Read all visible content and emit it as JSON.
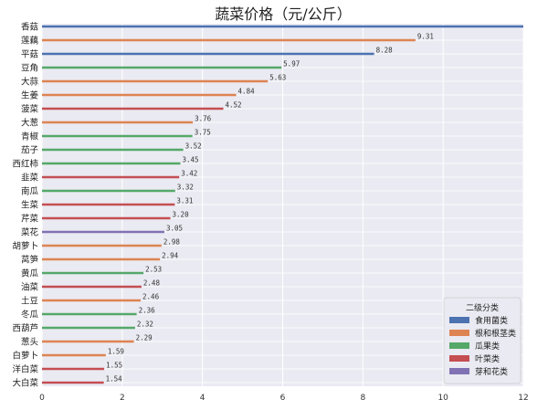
{
  "chart_data": {
    "type": "bar",
    "orientation": "horizontal",
    "title": "蔬菜价格（元/公斤）",
    "xlabel": "",
    "ylabel": "",
    "xlim": [
      0,
      12
    ],
    "xticks": [
      0,
      2,
      4,
      6,
      8,
      10,
      12
    ],
    "grid": true,
    "legend_placement": "bottom-right",
    "legend_title": "二级分类",
    "legend": [
      {
        "name": "食用菌类",
        "color": "#4C72B0"
      },
      {
        "name": "根和根茎类",
        "color": "#DD8452"
      },
      {
        "name": "瓜果类",
        "color": "#55A868"
      },
      {
        "name": "叶菜类",
        "color": "#C44E52"
      },
      {
        "name": "芽和花类",
        "color": "#8172B3"
      }
    ],
    "bars": [
      {
        "category": "香菇",
        "value": 12.0,
        "group": "食用菌类",
        "label": ""
      },
      {
        "category": "莲藕",
        "value": 9.31,
        "group": "根和根茎类",
        "label": "9.31"
      },
      {
        "category": "平菇",
        "value": 8.28,
        "group": "食用菌类",
        "label": "8.28"
      },
      {
        "category": "豆角",
        "value": 5.97,
        "group": "瓜果类",
        "label": "5.97"
      },
      {
        "category": "大蒜",
        "value": 5.63,
        "group": "根和根茎类",
        "label": "5.63"
      },
      {
        "category": "生姜",
        "value": 4.84,
        "group": "根和根茎类",
        "label": "4.84"
      },
      {
        "category": "菠菜",
        "value": 4.52,
        "group": "叶菜类",
        "label": "4.52"
      },
      {
        "category": "大葱",
        "value": 3.76,
        "group": "根和根茎类",
        "label": "3.76"
      },
      {
        "category": "青椒",
        "value": 3.75,
        "group": "瓜果类",
        "label": "3.75"
      },
      {
        "category": "茄子",
        "value": 3.52,
        "group": "瓜果类",
        "label": "3.52"
      },
      {
        "category": "西红柿",
        "value": 3.45,
        "group": "瓜果类",
        "label": "3.45"
      },
      {
        "category": "韭菜",
        "value": 3.42,
        "group": "叶菜类",
        "label": "3.42"
      },
      {
        "category": "南瓜",
        "value": 3.32,
        "group": "瓜果类",
        "label": "3.32"
      },
      {
        "category": "生菜",
        "value": 3.31,
        "group": "叶菜类",
        "label": "3.31"
      },
      {
        "category": "芹菜",
        "value": 3.2,
        "group": "叶菜类",
        "label": "3.20"
      },
      {
        "category": "菜花",
        "value": 3.05,
        "group": "芽和花类",
        "label": "3.05"
      },
      {
        "category": "胡萝卜",
        "value": 2.98,
        "group": "根和根茎类",
        "label": "2.98"
      },
      {
        "category": "莴笋",
        "value": 2.94,
        "group": "根和根茎类",
        "label": "2.94"
      },
      {
        "category": "黄瓜",
        "value": 2.53,
        "group": "瓜果类",
        "label": "2.53"
      },
      {
        "category": "油菜",
        "value": 2.48,
        "group": "叶菜类",
        "label": "2.48"
      },
      {
        "category": "土豆",
        "value": 2.46,
        "group": "根和根茎类",
        "label": "2.46"
      },
      {
        "category": "冬瓜",
        "value": 2.36,
        "group": "瓜果类",
        "label": "2.36"
      },
      {
        "category": "西葫芦",
        "value": 2.32,
        "group": "瓜果类",
        "label": "2.32"
      },
      {
        "category": "葱头",
        "value": 2.29,
        "group": "根和根茎类",
        "label": "2.29"
      },
      {
        "category": "白萝卜",
        "value": 1.59,
        "group": "根和根茎类",
        "label": "1.59"
      },
      {
        "category": "洋白菜",
        "value": 1.55,
        "group": "叶菜类",
        "label": "1.55"
      },
      {
        "category": "大白菜",
        "value": 1.54,
        "group": "叶菜类",
        "label": "1.54"
      }
    ]
  }
}
